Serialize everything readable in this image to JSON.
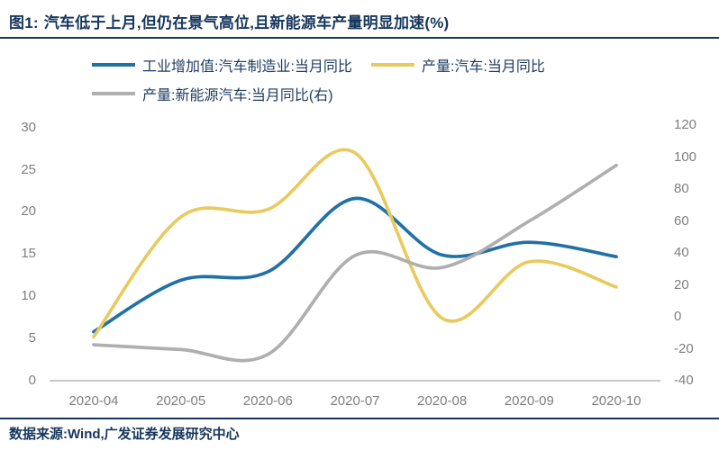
{
  "header": {
    "figure_label": "图1:",
    "title": "汽车低于上月,但仍在景气高位,且新能源车产量明显加速(%)"
  },
  "footer": {
    "source": "数据来源:Wind,广发证券发展研究中心"
  },
  "colors": {
    "navy_text": "#16365C",
    "tick_text": "#7F7F7F",
    "axis_line": "#A6A6A6",
    "series_blue": "#2271A6",
    "series_yellow": "#E8CB5F",
    "series_gray": "#AFAFAF"
  },
  "chart_data": {
    "type": "line",
    "title": "图1: 汽车低于上月,但仍在景气高位,且新能源车产量明显加速(%)",
    "categories": [
      "2020-04",
      "2020-05",
      "2020-06",
      "2020-07",
      "2020-08",
      "2020-09",
      "2020-10"
    ],
    "series": [
      {
        "name": "工业增加值:汽车制造业:当月同比",
        "axis": "left",
        "color": "#2271A6",
        "values": [
          5.8,
          11.9,
          12.9,
          21.6,
          14.9,
          16.4,
          14.7
        ]
      },
      {
        "name": "产量:汽车:当月同比",
        "axis": "left",
        "color": "#E8CB5F",
        "values": [
          5.2,
          19.4,
          20.3,
          27.0,
          7.4,
          14.1,
          11.1
        ]
      },
      {
        "name": "产量:新能源汽车:当月同比(右)",
        "axis": "right",
        "color": "#AFAFAF",
        "values": [
          -17.5,
          -20.5,
          -23.5,
          38.5,
          31.0,
          60.0,
          95.0
        ]
      }
    ],
    "left_axis": {
      "ticks": [
        30,
        25,
        20,
        15,
        10,
        5,
        0
      ],
      "range": [
        0,
        30
      ]
    },
    "right_axis": {
      "ticks": [
        120,
        100,
        80,
        60,
        40,
        20,
        0,
        -20,
        -40
      ],
      "range": [
        -40,
        120
      ]
    },
    "grid": false,
    "legend_position": "top",
    "line_smoothing": true
  }
}
